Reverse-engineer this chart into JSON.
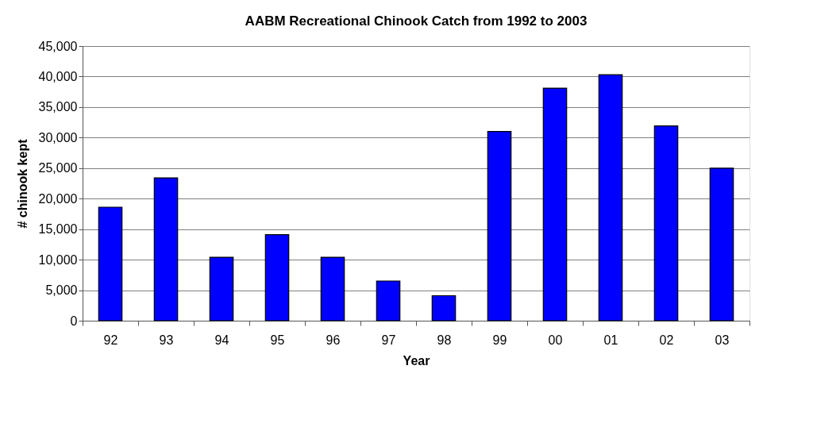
{
  "chart_data": {
    "type": "bar",
    "title": "AABM Recreational Chinook Catch from 1992 to 2003",
    "xlabel": "Year",
    "ylabel": "# chinook kept",
    "categories": [
      "92",
      "93",
      "94",
      "95",
      "96",
      "97",
      "98",
      "99",
      "00",
      "01",
      "02",
      "03"
    ],
    "values": [
      18600,
      23400,
      10400,
      14100,
      10400,
      6500,
      4100,
      31000,
      38100,
      40300,
      31900,
      25000
    ],
    "color": "#0000ff",
    "ylim": [
      0,
      45000
    ],
    "yticks": [
      {
        "value": 0,
        "label": "0"
      },
      {
        "value": 5000,
        "label": "5,000"
      },
      {
        "value": 10000,
        "label": "10,000"
      },
      {
        "value": 15000,
        "label": "15,000"
      },
      {
        "value": 20000,
        "label": "20,000"
      },
      {
        "value": 25000,
        "label": "25,000"
      },
      {
        "value": 30000,
        "label": "30,000"
      },
      {
        "value": 35000,
        "label": "35,000"
      },
      {
        "value": 40000,
        "label": "40,000"
      },
      {
        "value": 45000,
        "label": "45,000"
      }
    ],
    "grid": "y"
  }
}
